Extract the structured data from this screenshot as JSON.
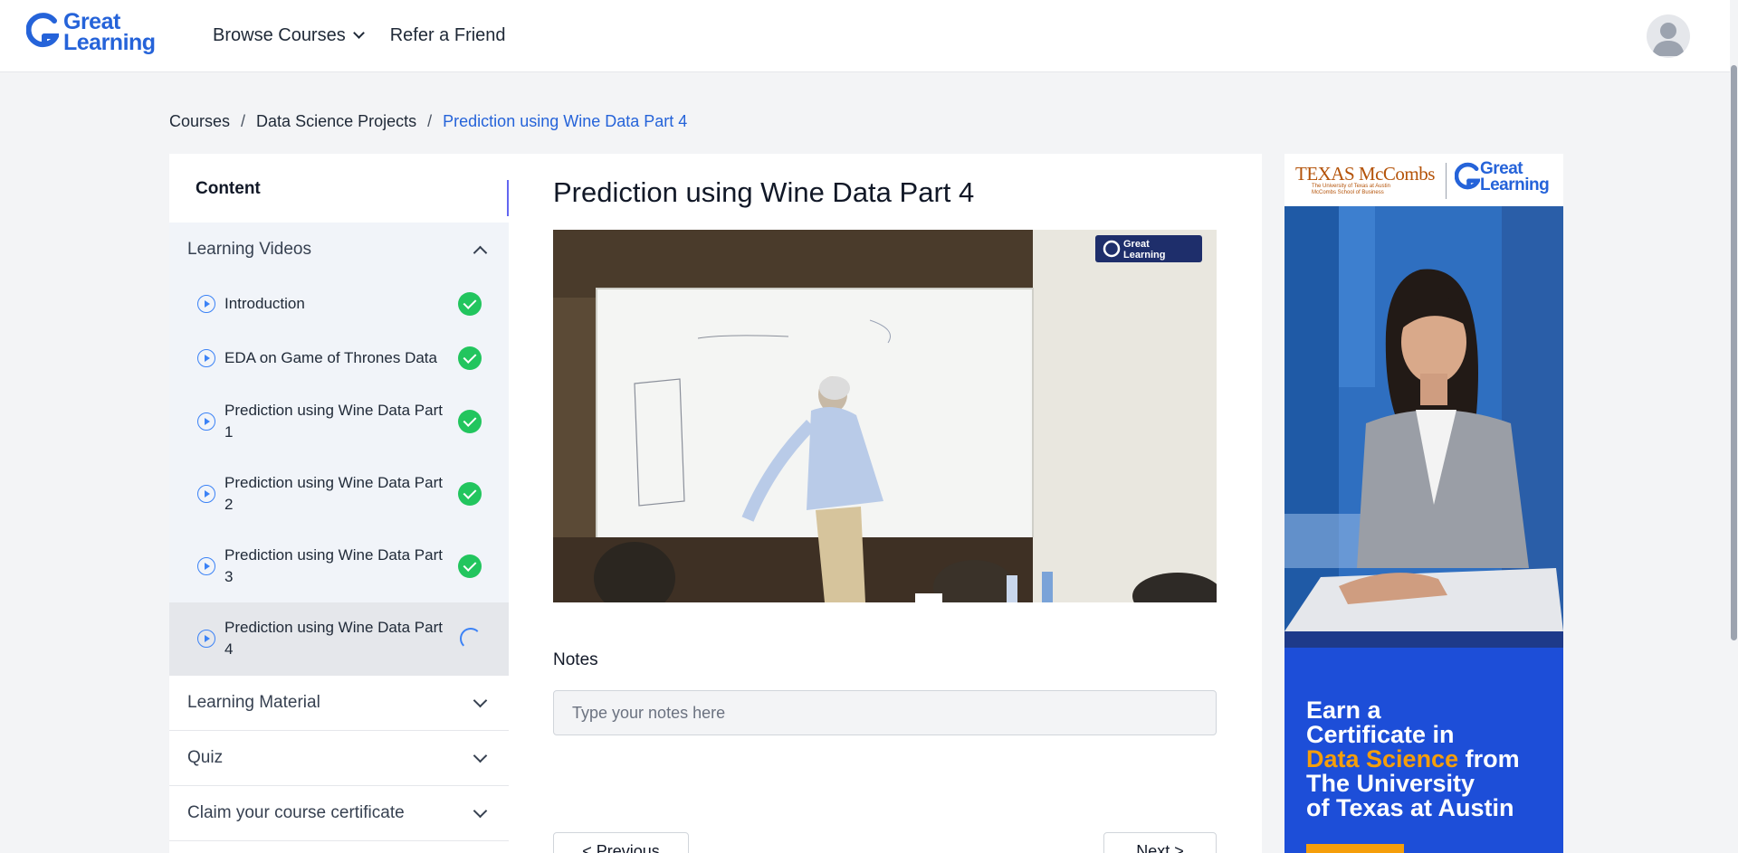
{
  "header": {
    "logo_text_1": "Great",
    "logo_text_2": "Learning",
    "nav": [
      {
        "label": "Browse Courses"
      },
      {
        "label": "Refer a Friend"
      }
    ]
  },
  "breadcrumb": [
    "Courses",
    "Data Science Projects",
    "Prediction using Wine Data Part 4"
  ],
  "sidebar": {
    "heading": "Content",
    "sections": [
      {
        "label": "Learning Videos"
      },
      {
        "label": "Learning Material"
      },
      {
        "label": "Quiz"
      },
      {
        "label": "Claim your course certificate"
      }
    ],
    "videos": [
      {
        "title": "Introduction",
        "status": "completed"
      },
      {
        "title": "EDA on Game of Thrones Data",
        "status": "completed"
      },
      {
        "title": "Prediction using Wine Data Part 1",
        "status": "completed"
      },
      {
        "title": "Prediction using Wine Data Part 2",
        "status": "completed"
      },
      {
        "title": "Prediction using Wine Data Part 3",
        "status": "completed"
      },
      {
        "title": "Prediction using Wine Data Part 4",
        "status": "in-progress"
      }
    ],
    "collapse_label": "«"
  },
  "main": {
    "title": "Prediction using Wine Data Part 4",
    "video_watermark_1": "Great",
    "video_watermark_2": "Learning",
    "notes_label": "Notes",
    "notes_placeholder": "Type your notes here",
    "prev_label": "< Previous",
    "next_label": "Next >"
  },
  "ad": {
    "texas": "TEXAS McCombs",
    "texas_sub_1": "The University of Texas at Austin",
    "texas_sub_2": "McCombs School of Business",
    "gl_1": "Great",
    "gl_2": "Learning",
    "line1": "Earn a",
    "line2": "Certificate in",
    "highlight": "Data Science",
    "line3_rest": " from",
    "line4": "The University",
    "line5": "of Texas at Austin"
  },
  "colors": {
    "brand": "#2563d9",
    "success": "#22c55e",
    "accent": "#6366f1",
    "ad_highlight": "#f59e0b"
  }
}
